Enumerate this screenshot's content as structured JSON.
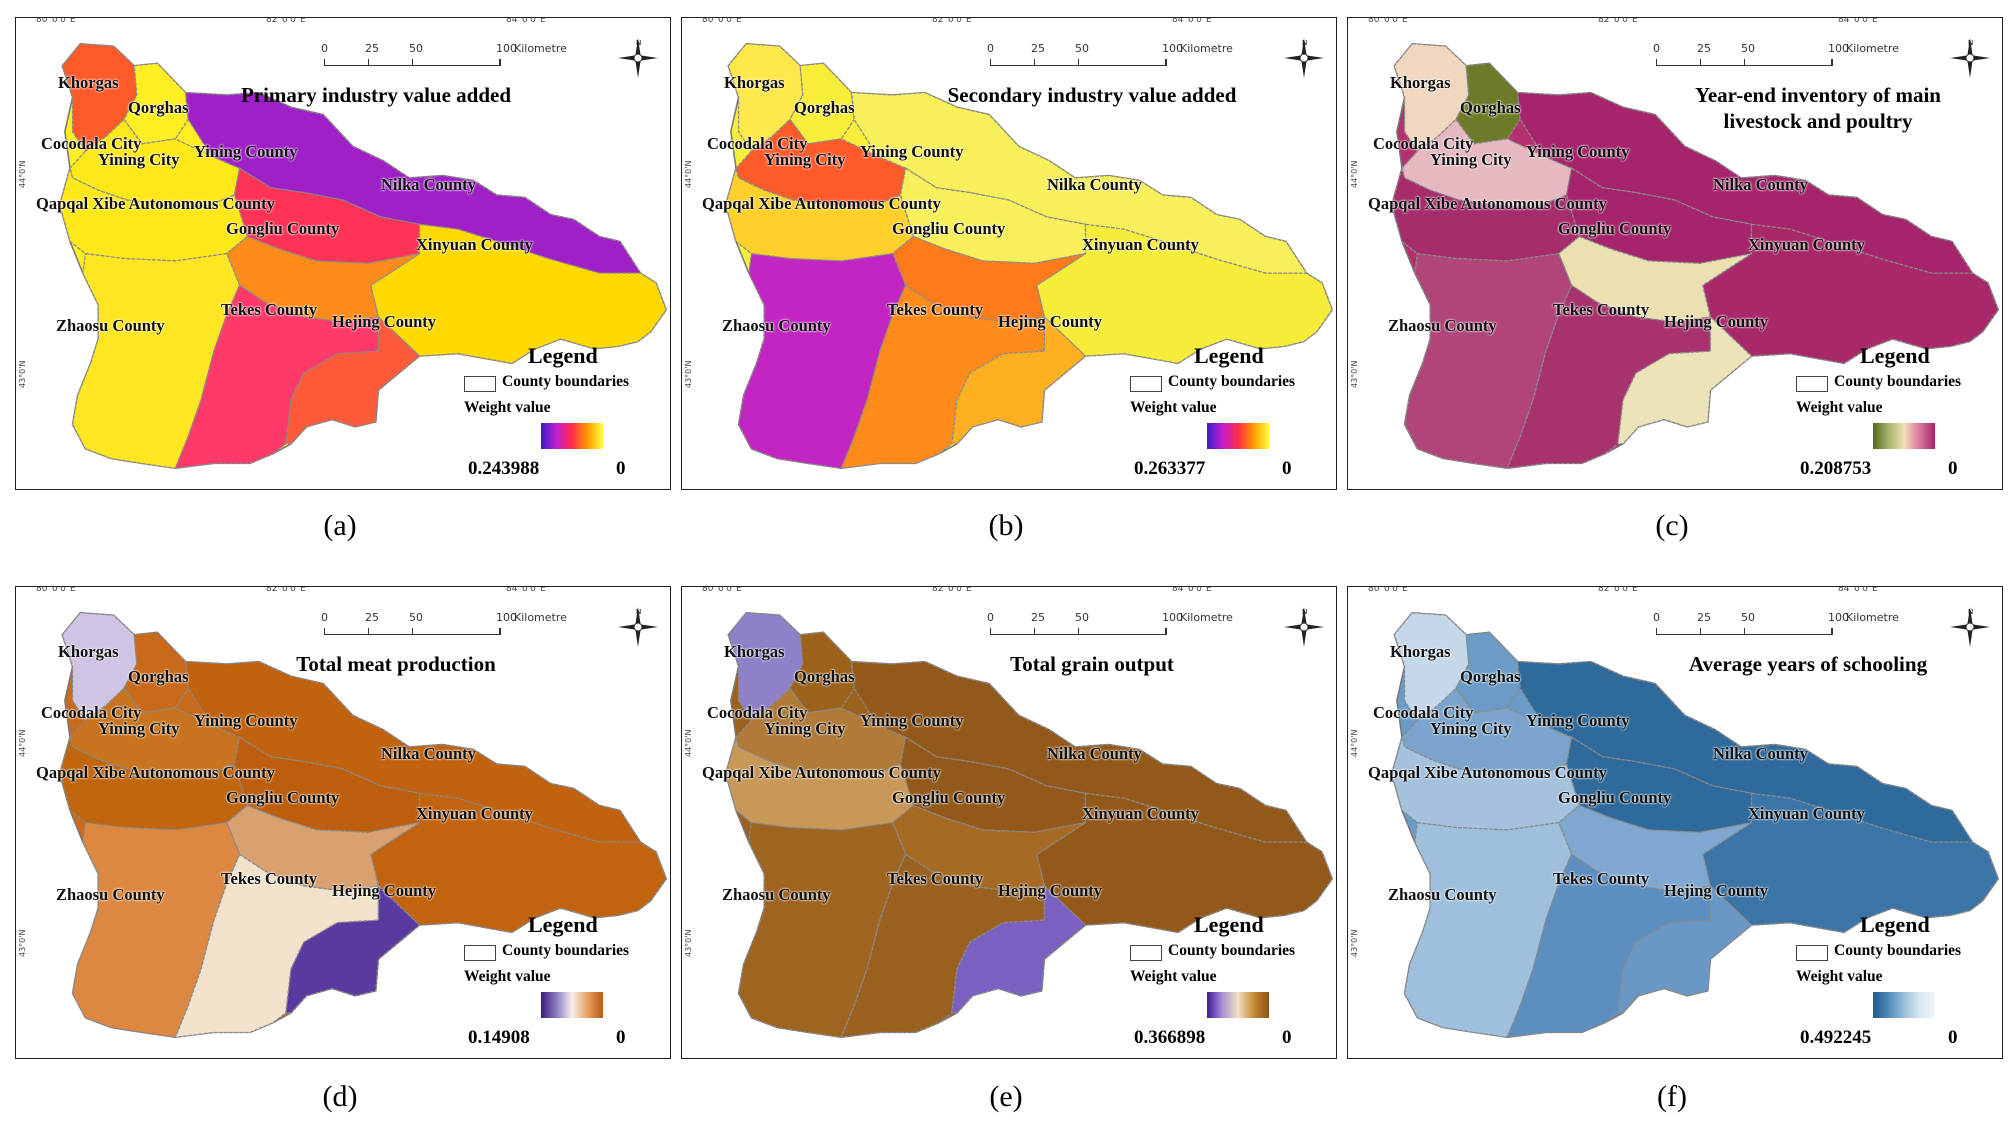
{
  "scale": {
    "labels": [
      "0",
      "25",
      "50",
      "100"
    ],
    "unit": "Kilometre"
  },
  "top_ticks": [
    "80°0'0\"E",
    "82°0'0\"E",
    "84°0'0\"E"
  ],
  "side_ticks": [
    "44°0'N",
    "43°0'N"
  ],
  "counties": {
    "khorgas": "Khorgas",
    "qorghas": "Qorghas",
    "cocodala": "Cocodala City",
    "yining_city": "Yining City",
    "yining_county": "Yining County",
    "nilka": "Nilka County",
    "qapqal": "Qapqal Xibe Autonomous County",
    "gongliu": "Gongliu County",
    "xinyuan": "Xinyuan County",
    "zhaosu": "Zhaosu County",
    "tekes": "Tekes County",
    "hejing": "Hejing County"
  },
  "legend": {
    "title": "Legend",
    "boundaries": "County boundaries",
    "weight": "Weight value"
  },
  "panels": [
    {
      "caption": "(a)",
      "title": "Primary industry value added",
      "max": "0.243988",
      "min": "0",
      "ramp": [
        "#3a1cc9",
        "#c21fd0",
        "#ff2a4a",
        "#ff9a00",
        "#ffff3a"
      ]
    },
    {
      "caption": "(b)",
      "title": "Secondary industry value added",
      "max": "0.263377",
      "min": "0",
      "ramp": [
        "#3a1cc9",
        "#c21fd0",
        "#ff2a4a",
        "#ff9a00",
        "#ffff3a"
      ]
    },
    {
      "caption": "(c)",
      "title": "Year-end inventory of main\nlivestock and poultry",
      "max": "0.208753",
      "min": "0",
      "ramp": [
        "#4f6a1e",
        "#a8b36a",
        "#f2dfb4",
        "#d9789e",
        "#a6246c"
      ]
    },
    {
      "caption": "(d)",
      "title": "Total meat production",
      "max": "0.14908",
      "min": "0",
      "ramp": [
        "#3d1a7a",
        "#8a7cc0",
        "#f5f0ea",
        "#e6a060",
        "#b85a10"
      ]
    },
    {
      "caption": "(e)",
      "title": "Total grain output",
      "max": "0.366898",
      "min": "0",
      "ramp": [
        "#3d1a9a",
        "#a890d8",
        "#f2e0c0",
        "#c88a3a",
        "#8c5412"
      ]
    },
    {
      "caption": "(f)",
      "title": "Average years of schooling",
      "max": "0.492245",
      "min": "0",
      "ramp": [
        "#215a8c",
        "#4f8ab8",
        "#9ec0dc",
        "#d8e6f0",
        "#eef4f8"
      ]
    }
  ]
}
